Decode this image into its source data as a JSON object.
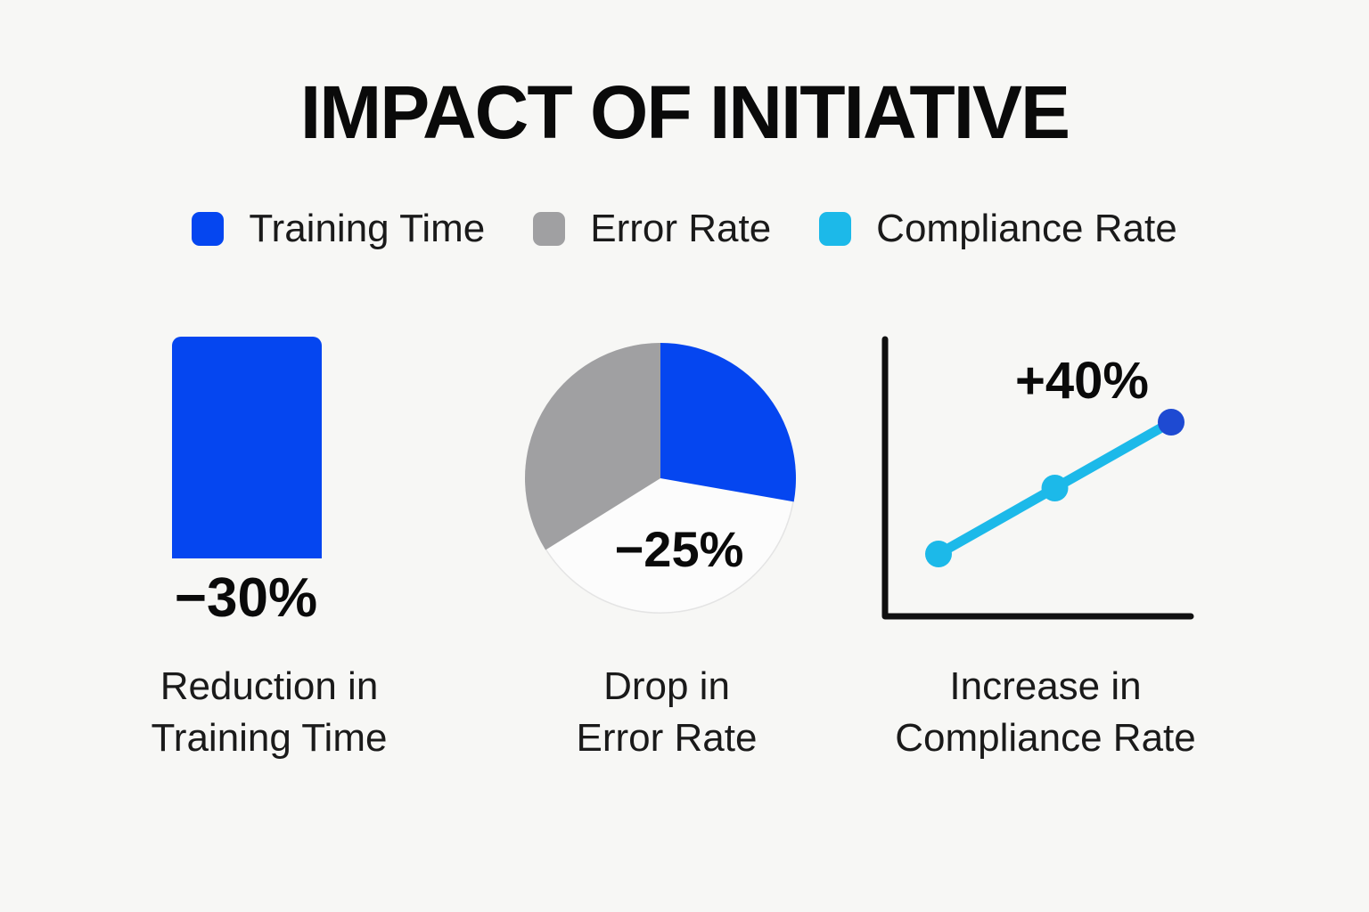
{
  "title": "IMPACT OF INITIATIVE",
  "legend": [
    {
      "label": "Training Time",
      "color": "#0546f0"
    },
    {
      "label": "Error Rate",
      "color": "#a0a0a2"
    },
    {
      "label": "Compliance Rate",
      "color": "#1cb9e9"
    }
  ],
  "colors": {
    "background": "#f7f7f5",
    "text": "#111111",
    "accent_blue": "#0546f0",
    "gray": "#a0a0a2",
    "cyan": "#1cb9e9",
    "dark_blue_point": "#1e4ad2",
    "axis": "#111111",
    "pie_white": "#fcfcfc",
    "pie_white_outline": "#e4e4e4"
  },
  "chart_data": [
    {
      "type": "bar",
      "series_name": "Training Time",
      "categories": [
        "Training Time"
      ],
      "values": [
        -30
      ],
      "value_label": "−30%",
      "bar_color": "#0546f0",
      "caption_lines": [
        "Reduction in",
        "Training Time"
      ]
    },
    {
      "type": "pie",
      "series_name": "Error Rate",
      "value_label": "−25%",
      "slices": [
        {
          "name": "blue",
          "color": "#0546f0",
          "start_deg": 0,
          "end_deg": 100,
          "percent": 28
        },
        {
          "name": "white",
          "color": "#fcfcfc",
          "start_deg": 100,
          "end_deg": 238,
          "percent": 38
        },
        {
          "name": "gray",
          "color": "#a0a0a2",
          "start_deg": 238,
          "end_deg": 360,
          "percent": 34
        }
      ],
      "caption_lines": [
        "Drop in",
        "Error Rate"
      ]
    },
    {
      "type": "line",
      "series_name": "Compliance Rate",
      "x": [
        1,
        2,
        3
      ],
      "values": [
        0,
        20,
        40
      ],
      "ylim": [
        0,
        40
      ],
      "value_label": "+40%",
      "line_color": "#1cb9e9",
      "point_colors": [
        "#1cb9e9",
        "#1cb9e9",
        "#1e4ad2"
      ],
      "caption_lines": [
        "Increase in",
        "Compliance Rate"
      ]
    }
  ]
}
